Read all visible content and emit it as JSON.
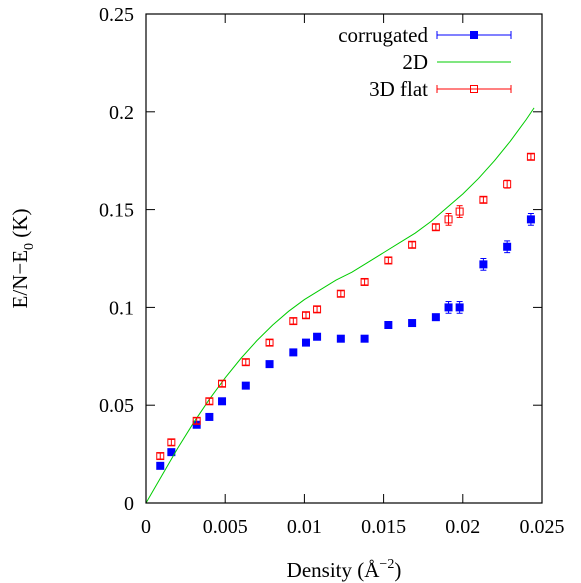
{
  "chart_data": {
    "type": "scatter",
    "title": "",
    "xlabel": "Density (Å",
    "xlabel_sup": "−2",
    "xlabel_end": ")",
    "ylabel": "E/N−E",
    "ylabel_sub": "0",
    "ylabel_end": " (K)",
    "xlim": [
      0,
      0.025
    ],
    "ylim": [
      0,
      0.25
    ],
    "x_ticks": [
      0,
      0.005,
      0.01,
      0.015,
      0.02,
      0.025
    ],
    "x_tick_labels": [
      "0",
      "0.005",
      "0.01",
      "0.015",
      "0.02",
      "0.025"
    ],
    "y_ticks": [
      0,
      0.05,
      0.1,
      0.15,
      0.2,
      0.25
    ],
    "y_tick_labels": [
      "0",
      "0.05",
      "0.1",
      "0.15",
      "0.2",
      "0.25"
    ],
    "grid": false,
    "legend_position": "top-right",
    "series": [
      {
        "name": "corrugated",
        "style": "filled-square-errorbars",
        "color": "#0000ff",
        "points": [
          {
            "x": 0.0009,
            "y": 0.019,
            "err": 0.0015
          },
          {
            "x": 0.0016,
            "y": 0.026,
            "err": 0.0015
          },
          {
            "x": 0.0032,
            "y": 0.04,
            "err": 0.0015
          },
          {
            "x": 0.004,
            "y": 0.044,
            "err": 0.0015
          },
          {
            "x": 0.0048,
            "y": 0.052,
            "err": 0.0015
          },
          {
            "x": 0.0063,
            "y": 0.06,
            "err": 0.0015
          },
          {
            "x": 0.0078,
            "y": 0.071,
            "err": 0.0015
          },
          {
            "x": 0.0093,
            "y": 0.077,
            "err": 0.0015
          },
          {
            "x": 0.0101,
            "y": 0.082,
            "err": 0.0015
          },
          {
            "x": 0.0108,
            "y": 0.085,
            "err": 0.0015
          },
          {
            "x": 0.0123,
            "y": 0.084,
            "err": 0.0015
          },
          {
            "x": 0.0138,
            "y": 0.084,
            "err": 0.0015
          },
          {
            "x": 0.0153,
            "y": 0.091,
            "err": 0.0015
          },
          {
            "x": 0.0168,
            "y": 0.092,
            "err": 0.0015
          },
          {
            "x": 0.0183,
            "y": 0.095,
            "err": 0.0015
          },
          {
            "x": 0.0191,
            "y": 0.1,
            "err": 0.003
          },
          {
            "x": 0.0198,
            "y": 0.1,
            "err": 0.003
          },
          {
            "x": 0.0213,
            "y": 0.122,
            "err": 0.003
          },
          {
            "x": 0.0228,
            "y": 0.131,
            "err": 0.003
          },
          {
            "x": 0.0243,
            "y": 0.145,
            "err": 0.003
          }
        ]
      },
      {
        "name": "2D",
        "style": "line",
        "color": "#00cc00",
        "points": [
          {
            "x": 0,
            "y": 0
          },
          {
            "x": 0.001,
            "y": 0.014
          },
          {
            "x": 0.002,
            "y": 0.028
          },
          {
            "x": 0.003,
            "y": 0.041
          },
          {
            "x": 0.004,
            "y": 0.053
          },
          {
            "x": 0.005,
            "y": 0.064
          },
          {
            "x": 0.006,
            "y": 0.074
          },
          {
            "x": 0.007,
            "y": 0.083
          },
          {
            "x": 0.008,
            "y": 0.091
          },
          {
            "x": 0.009,
            "y": 0.098
          },
          {
            "x": 0.01,
            "y": 0.104
          },
          {
            "x": 0.011,
            "y": 0.109
          },
          {
            "x": 0.012,
            "y": 0.114
          },
          {
            "x": 0.013,
            "y": 0.118
          },
          {
            "x": 0.014,
            "y": 0.123
          },
          {
            "x": 0.015,
            "y": 0.128
          },
          {
            "x": 0.016,
            "y": 0.133
          },
          {
            "x": 0.017,
            "y": 0.138
          },
          {
            "x": 0.018,
            "y": 0.144
          },
          {
            "x": 0.019,
            "y": 0.151
          },
          {
            "x": 0.02,
            "y": 0.158
          },
          {
            "x": 0.021,
            "y": 0.166
          },
          {
            "x": 0.022,
            "y": 0.175
          },
          {
            "x": 0.023,
            "y": 0.185
          },
          {
            "x": 0.024,
            "y": 0.196
          },
          {
            "x": 0.0245,
            "y": 0.202
          }
        ]
      },
      {
        "name": "3D flat",
        "style": "open-square-errorbars",
        "color": "#ff0000",
        "points": [
          {
            "x": 0.0009,
            "y": 0.024,
            "err": 0.0015
          },
          {
            "x": 0.0016,
            "y": 0.031,
            "err": 0.0015
          },
          {
            "x": 0.0032,
            "y": 0.042,
            "err": 0.0015
          },
          {
            "x": 0.004,
            "y": 0.052,
            "err": 0.0015
          },
          {
            "x": 0.0048,
            "y": 0.061,
            "err": 0.0015
          },
          {
            "x": 0.0063,
            "y": 0.072,
            "err": 0.0015
          },
          {
            "x": 0.0078,
            "y": 0.082,
            "err": 0.0015
          },
          {
            "x": 0.0093,
            "y": 0.093,
            "err": 0.0015
          },
          {
            "x": 0.0101,
            "y": 0.096,
            "err": 0.0015
          },
          {
            "x": 0.0108,
            "y": 0.099,
            "err": 0.0015
          },
          {
            "x": 0.0123,
            "y": 0.107,
            "err": 0.0015
          },
          {
            "x": 0.0138,
            "y": 0.113,
            "err": 0.0015
          },
          {
            "x": 0.0153,
            "y": 0.124,
            "err": 0.0015
          },
          {
            "x": 0.0168,
            "y": 0.132,
            "err": 0.0015
          },
          {
            "x": 0.0183,
            "y": 0.141,
            "err": 0.0015
          },
          {
            "x": 0.0191,
            "y": 0.145,
            "err": 0.003
          },
          {
            "x": 0.0198,
            "y": 0.149,
            "err": 0.003
          },
          {
            "x": 0.0213,
            "y": 0.155,
            "err": 0.0015
          },
          {
            "x": 0.0228,
            "y": 0.163,
            "err": 0.002
          },
          {
            "x": 0.0243,
            "y": 0.177,
            "err": 0.0015
          }
        ]
      }
    ]
  }
}
